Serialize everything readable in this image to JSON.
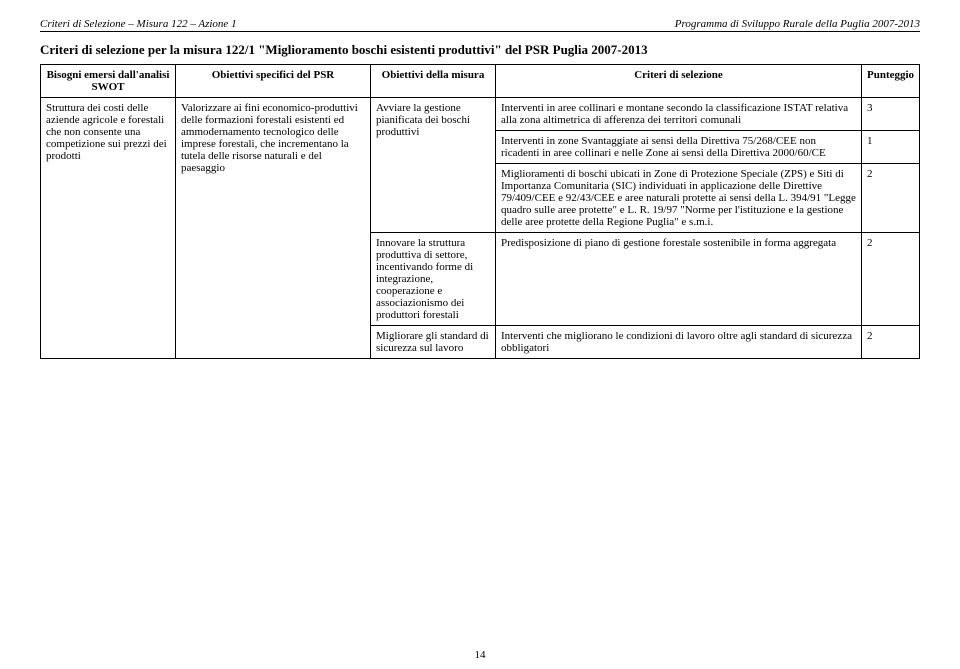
{
  "header": {
    "left": "Criteri di Selezione – Misura 122 – Azione 1",
    "right": "Programma di Sviluppo Rurale della Puglia 2007-2013"
  },
  "title": {
    "prefix": "Criteri di selezione per la misura 122/1 ",
    "quoted": "\"Miglioramento boschi esistenti produttivi\"",
    "suffix": " del PSR Puglia 2007-2013"
  },
  "columns": {
    "a": "Bisogni emersi dall'analisi SWOT",
    "b": "Obiettivi specifici del PSR",
    "c": "Obiettivi della misura",
    "d": "Criteri di selezione",
    "e": "Punteggio"
  },
  "rows": {
    "bisogni": "Struttura dei costi delle aziende agricole e forestali che non consente una competizione sui prezzi dei prodotti",
    "obiettivi_psr": "Valorizzare ai fini economico-produttivi delle formazioni forestali esistenti ed ammodernamento tecnologico delle imprese forestali, che incrementano la tutela delle risorse naturali e del paesaggio",
    "obiettivi_misura_1": "Avviare la gestione pianificata dei boschi produttivi",
    "obiettivi_misura_2": "Innovare la struttura produttiva di settore, incentivando forme di integrazione, cooperazione e associazionismo dei produttori forestali",
    "obiettivi_misura_3": "Migliorare gli standard di sicurezza sul lavoro",
    "criteri": {
      "c1": "Interventi in aree collinari e montane secondo la classificazione ISTAT relativa alla zona altimetrica di afferenza dei territori comunali",
      "c2": "Interventi in zone Svantaggiate ai sensi della Direttiva 75/268/CEE non ricadenti in aree collinari e nelle Zone ai sensi della Direttiva 2000/60/CE",
      "c3": "Miglioramenti di boschi ubicati in Zone di Protezione Speciale (ZPS) e Siti di Importanza Comunitaria (SIC) individuati in applicazione delle Direttive 79/409/CEE e 92/43/CEE e aree naturali protette ai sensi della L. 394/91 \"Legge quadro sulle aree protette\" e L. R. 19/97 \"Norme per l'istituzione e la gestione delle aree protette della Regione Puglia\" e s.m.i.",
      "c4": "Predisposizione di piano di gestione forestale sostenibile in forma aggregata",
      "c5": "Interventi che migliorano le condizioni di lavoro oltre agli standard di sicurezza obbligatori"
    },
    "punteggi": {
      "p1": "3",
      "p2": "1",
      "p3": "2",
      "p4": "2",
      "p5": "2"
    }
  },
  "footer": {
    "page": "14"
  }
}
